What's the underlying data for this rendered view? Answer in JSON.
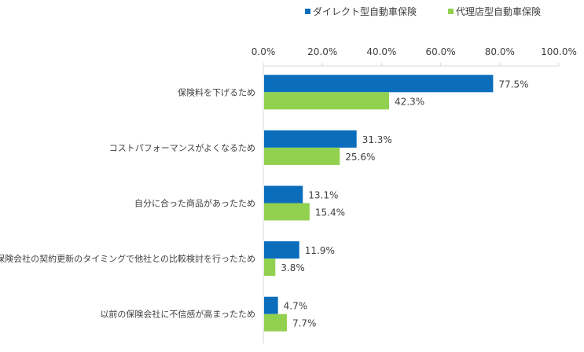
{
  "chart_data": {
    "type": "bar",
    "orientation": "horizontal",
    "categories": [
      "保険料を下げるため",
      "コストパフォーマンスがよくなるため",
      "自分に合った商品があったため",
      "保険会社の契約更新のタイミングで他社との比較検討を行ったため",
      "以前の保険会社に不信感が高まったため"
    ],
    "series": [
      {
        "name": "ダイレクト型自動車保険",
        "color": "#0a6ebd",
        "values": [
          77.5,
          31.3,
          13.1,
          11.9,
          4.7
        ],
        "labels": [
          "77.5%",
          "31.3%",
          "13.1%",
          "11.9%",
          "4.7%"
        ]
      },
      {
        "name": "代理店型自動車保険",
        "color": "#92d050",
        "values": [
          42.3,
          25.6,
          15.4,
          3.8,
          7.7
        ],
        "labels": [
          "42.3%",
          "25.6%",
          "15.4%",
          "3.8%",
          "7.7%"
        ]
      }
    ],
    "xlim": [
      0,
      100
    ],
    "xticks": [
      "0.0%",
      "20.0%",
      "40.0%",
      "60.0%",
      "80.0%",
      "100.0%"
    ],
    "axis_position": "top",
    "grid": false,
    "legend": "top"
  }
}
